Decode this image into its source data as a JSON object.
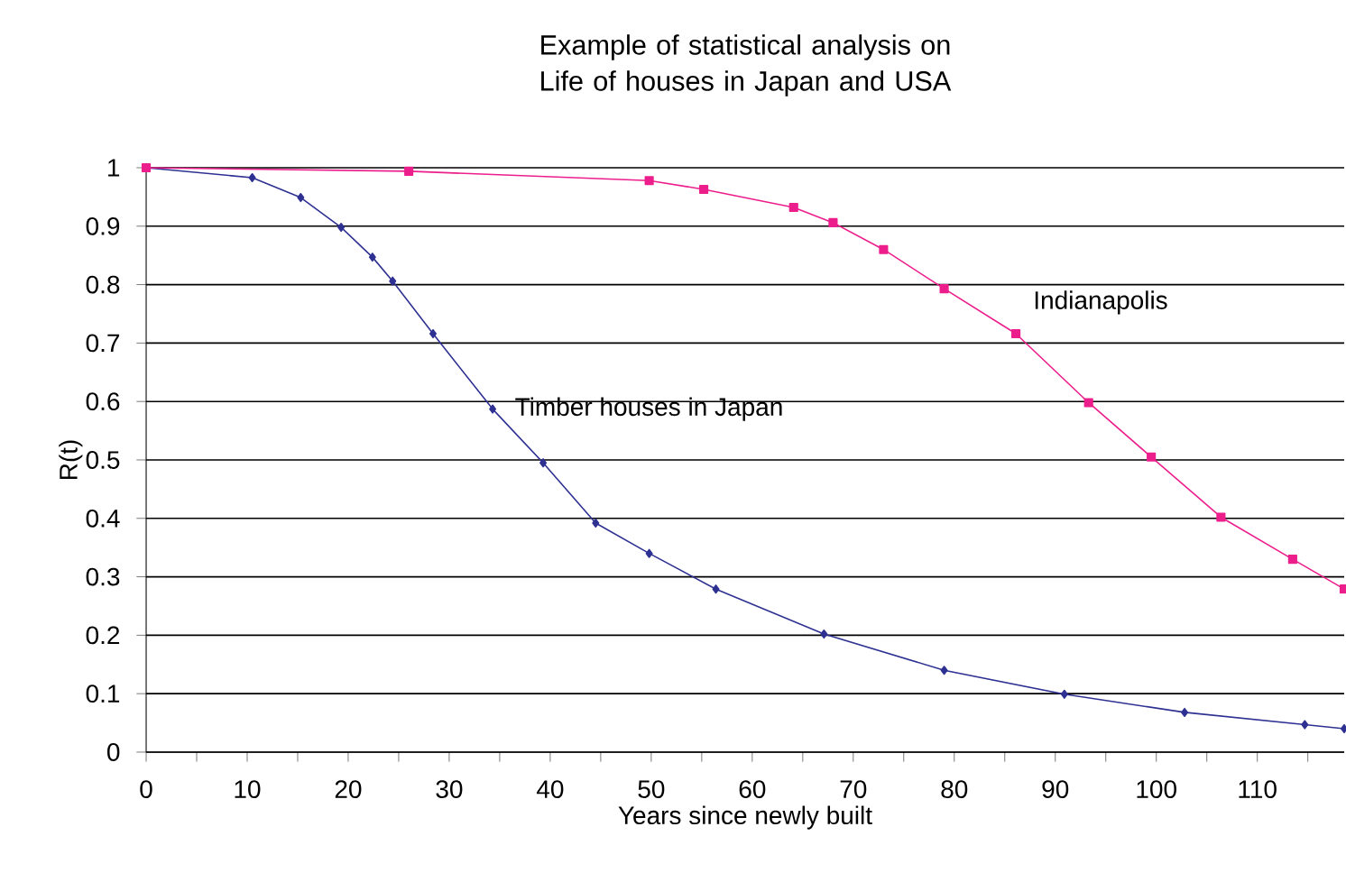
{
  "chart_data": {
    "type": "line",
    "title": "Example of statistical analysis on Life of houses in Japan and USA",
    "xlabel": "Years since newly built",
    "ylabel": "R(t)",
    "xlim": [
      0,
      118.6
    ],
    "xticks": [
      0,
      {
        "value": 5,
        "label": null
      },
      10,
      {
        "value": 15,
        "label": null
      },
      20,
      {
        "value": 25,
        "label": null
      },
      30,
      {
        "value": 35,
        "label": null
      },
      40,
      {
        "value": 45,
        "label": null
      },
      50,
      {
        "value": 55,
        "label": null
      },
      60,
      {
        "value": 65,
        "label": null
      },
      70,
      {
        "value": 75,
        "label": null
      },
      80,
      {
        "value": 85,
        "label": null
      },
      90,
      {
        "value": 95,
        "label": null
      },
      100,
      {
        "value": 105,
        "label": null
      },
      110,
      {
        "value": 115,
        "label": null
      }
    ],
    "ylim": [
      0,
      1
    ],
    "yticks": [
      0,
      0.1,
      0.2,
      0.3,
      0.4,
      0.5,
      0.6,
      0.7,
      0.8,
      0.9,
      1
    ],
    "grid": "y",
    "legend": false,
    "line_style": "solid",
    "series": [
      {
        "name": "Timber houses in Japan",
        "color": "#2e3192",
        "marker": "diamond",
        "x": [
          0,
          10.5,
          15.3,
          19.3,
          22.4,
          24.4,
          28.4,
          34.3,
          39.3,
          44.5,
          49.8,
          56.4,
          67.1,
          79,
          90.9,
          102.8,
          114.7,
          118.6
        ],
        "values": [
          1.0,
          0.983,
          0.949,
          0.898,
          0.847,
          0.806,
          0.716,
          0.587,
          0.495,
          0.392,
          0.34,
          0.279,
          0.202,
          0.14,
          0.099,
          0.068,
          0.047,
          0.04
        ]
      },
      {
        "name": "Indianapolis",
        "color": "#ec1e8c",
        "marker": "square",
        "x": [
          0,
          26,
          49.8,
          55.2,
          64.1,
          68,
          73,
          79,
          86.1,
          93.3,
          99.5,
          106.4,
          113.5,
          118.6
        ],
        "values": [
          1.0,
          0.994,
          0.978,
          0.963,
          0.932,
          0.906,
          0.86,
          0.793,
          0.716,
          0.598,
          0.505,
          0.402,
          0.33,
          0.279
        ]
      }
    ]
  }
}
